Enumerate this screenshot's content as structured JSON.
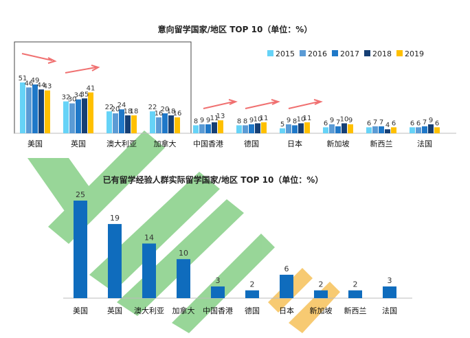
{
  "chart_data": [
    {
      "type": "bar",
      "title": "意向留学国家/地区 TOP 10（单位：%）",
      "categories": [
        "美国",
        "英国",
        "澳大利亚",
        "加拿大",
        "中国香港",
        "德国",
        "日本",
        "新加坡",
        "新西兰",
        "法国"
      ],
      "series": [
        {
          "name": "2015",
          "color": "#66d3f7",
          "values": [
            51,
            32,
            22,
            22,
            8,
            8,
            5,
            6,
            6,
            6
          ]
        },
        {
          "name": "2016",
          "color": "#5b9bd5",
          "values": [
            46,
            30,
            20,
            16,
            9,
            8,
            9,
            9,
            7,
            6
          ]
        },
        {
          "name": "2017",
          "color": "#1f78c8",
          "values": [
            49,
            34,
            24,
            20,
            9,
            9,
            8,
            7,
            7,
            7
          ]
        },
        {
          "name": "2018",
          "color": "#163f74",
          "values": [
            44,
            35,
            18,
            18,
            11,
            10,
            10,
            10,
            4,
            9
          ]
        },
        {
          "name": "2019",
          "color": "#ffc000",
          "values": [
            43,
            41,
            18,
            16,
            13,
            11,
            11,
            9,
            6,
            6
          ]
        }
      ],
      "ylim": [
        0,
        60
      ],
      "legend": "top-right"
    },
    {
      "type": "bar",
      "title": "已有留学经验人群实际留学国家/地区 TOP 10（单位：%）",
      "categories": [
        "美国",
        "英国",
        "澳大利亚",
        "加拿大",
        "中国香港",
        "德国",
        "日本",
        "新加坡",
        "新西兰",
        "法国"
      ],
      "series": [
        {
          "name": "实际留学",
          "color": "#0f6cbd",
          "values": [
            25,
            19,
            14,
            10,
            3,
            2,
            6,
            2,
            2,
            3
          ]
        }
      ],
      "ylim": [
        0,
        27
      ]
    }
  ],
  "colors": {
    "arrow": "#f07070",
    "watermark": "#45b545",
    "watermark_accent": "#f2a000"
  }
}
